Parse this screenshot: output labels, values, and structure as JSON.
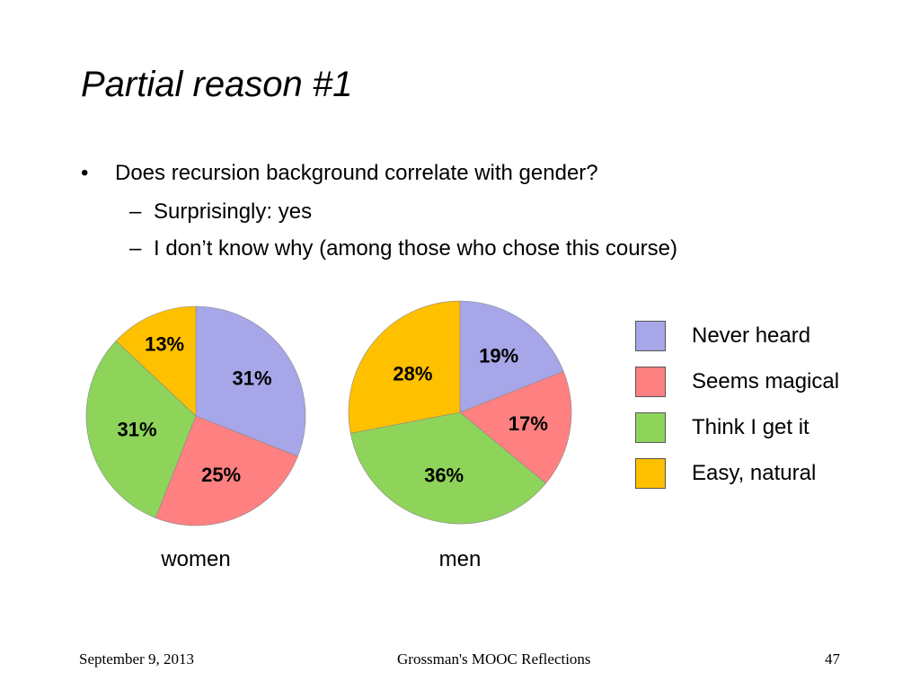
{
  "slide": {
    "title": "Partial reason #1",
    "bullet": {
      "mark": "•",
      "text": "Does recursion background correlate with gender?"
    },
    "sub_bullets": [
      {
        "mark": "–",
        "text": "Surprisingly: yes"
      },
      {
        "mark": "–",
        "text": "I don’t know why (among those who chose this course)"
      }
    ]
  },
  "legend": [
    {
      "label": "Never heard",
      "color": "#a6a6e8"
    },
    {
      "label": "Seems magical",
      "color": "#ff8080"
    },
    {
      "label": "Think I get it",
      "color": "#8ed45a"
    },
    {
      "label": "Easy, natural",
      "color": "#ffc000"
    }
  ],
  "chart_data": [
    {
      "type": "pie",
      "label": "women",
      "categories": [
        "Never heard",
        "Seems magical",
        "Think I get it",
        "Easy, natural"
      ],
      "values": [
        31,
        25,
        31,
        13
      ],
      "value_labels": [
        "31%",
        "25%",
        "31%",
        "13%"
      ],
      "colors": [
        "#a6a6e8",
        "#ff8080",
        "#8ed45a",
        "#ffc000"
      ]
    },
    {
      "type": "pie",
      "label": "men",
      "categories": [
        "Never heard",
        "Seems magical",
        "Think I get it",
        "Easy, natural"
      ],
      "values": [
        19,
        17,
        36,
        28
      ],
      "value_labels": [
        "19%",
        "17%",
        "36%",
        "28%"
      ],
      "colors": [
        "#a6a6e8",
        "#ff8080",
        "#8ed45a",
        "#ffc000"
      ]
    }
  ],
  "footer": {
    "date": "September 9, 2013",
    "title": "Grossman's MOOC Reflections",
    "page": "47"
  }
}
